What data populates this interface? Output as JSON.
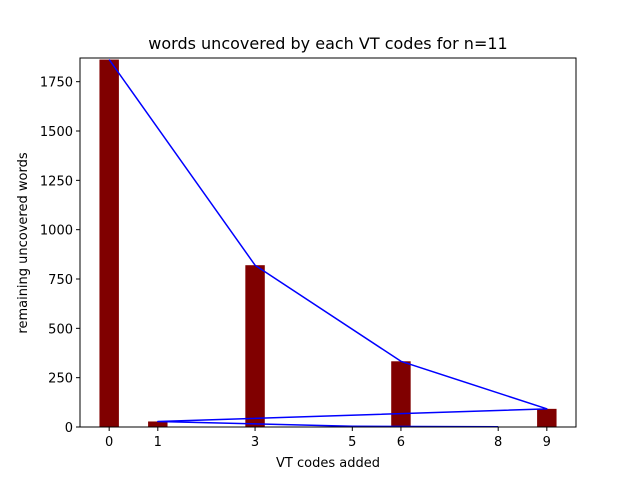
{
  "chart_data": {
    "type": "bar",
    "title": "words uncovered by each VT codes for n=11",
    "xlabel": "VT codes added",
    "ylabel": "remaining uncovered words",
    "x_ticks": [
      0,
      1,
      3,
      5,
      6,
      8,
      9
    ],
    "xlim": [
      -0.6,
      9.6
    ],
    "ylim": [
      0,
      1870
    ],
    "y_ticks": [
      0,
      250,
      500,
      750,
      1000,
      1250,
      1500,
      1750
    ],
    "grid": false,
    "legend": "none",
    "bar_width": 0.4,
    "bar_color": "#800000",
    "line_color": "#0000ff",
    "series": [
      {
        "type": "bar",
        "x": [
          0,
          1,
          3,
          6,
          9
        ],
        "values": [
          1862,
          28,
          820,
          333,
          92
        ]
      },
      {
        "type": "line",
        "x": [
          0,
          3,
          6,
          9,
          1,
          3,
          5,
          8
        ],
        "values": [
          1862,
          820,
          333,
          92,
          28,
          16,
          4,
          1
        ]
      }
    ]
  }
}
